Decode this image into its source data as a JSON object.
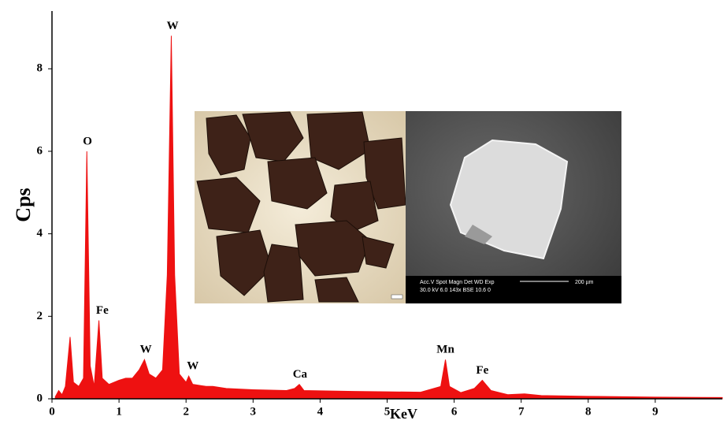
{
  "chart_data": {
    "type": "area",
    "xlabel": "KeV",
    "ylabel": "Cps",
    "color": "#ee1111",
    "x": [
      0.05,
      0.1,
      0.15,
      0.2,
      0.27,
      0.32,
      0.4,
      0.47,
      0.52,
      0.57,
      0.63,
      0.7,
      0.75,
      0.85,
      1.0,
      1.1,
      1.2,
      1.3,
      1.38,
      1.45,
      1.55,
      1.65,
      1.72,
      1.78,
      1.83,
      1.9,
      2.0,
      2.04,
      2.1,
      2.3,
      2.4,
      2.6,
      3.0,
      3.5,
      3.62,
      3.69,
      3.76,
      4.5,
      5.0,
      5.5,
      5.8,
      5.87,
      5.93,
      6.1,
      6.3,
      6.42,
      6.55,
      6.8,
      7.05,
      7.3,
      8.0,
      9.0,
      10.0
    ],
    "values": [
      0.05,
      0.2,
      0.1,
      0.3,
      1.5,
      0.4,
      0.3,
      0.5,
      6.0,
      0.8,
      0.3,
      1.9,
      0.5,
      0.35,
      0.45,
      0.5,
      0.5,
      0.7,
      0.95,
      0.6,
      0.5,
      0.7,
      3.0,
      8.8,
      3.0,
      0.6,
      0.4,
      0.55,
      0.35,
      0.3,
      0.3,
      0.25,
      0.22,
      0.2,
      0.25,
      0.35,
      0.2,
      0.18,
      0.17,
      0.16,
      0.3,
      0.95,
      0.3,
      0.15,
      0.25,
      0.45,
      0.2,
      0.1,
      0.12,
      0.08,
      0.06,
      0.04,
      0.03
    ],
    "xlim": [
      0,
      10
    ],
    "ylim": [
      0,
      9.4
    ],
    "xticks": [
      0,
      1,
      2,
      3,
      4,
      5,
      6,
      7,
      8,
      9
    ],
    "yticks": [
      0,
      2,
      4,
      6,
      8
    ],
    "annotations": [
      {
        "text": "O",
        "x": 0.53,
        "y": 6.0
      },
      {
        "text": "Fe",
        "x": 0.75,
        "y": 1.9
      },
      {
        "text": "W",
        "x": 1.8,
        "y": 8.8
      },
      {
        "text": "W",
        "x": 1.4,
        "y": 0.95
      },
      {
        "text": "W",
        "x": 2.1,
        "y": 0.55
      },
      {
        "text": "Ca",
        "x": 3.7,
        "y": 0.35
      },
      {
        "text": "Mn",
        "x": 5.87,
        "y": 0.95
      },
      {
        "text": "Fe",
        "x": 6.42,
        "y": 0.45
      }
    ],
    "inset_text": {
      "row1": "Acc.V  Spot Magn    Det  WD  Exp",
      "row2": "30.0 kV 6.0  143x    BSE 10.6  0",
      "scale": "200 µm"
    }
  }
}
